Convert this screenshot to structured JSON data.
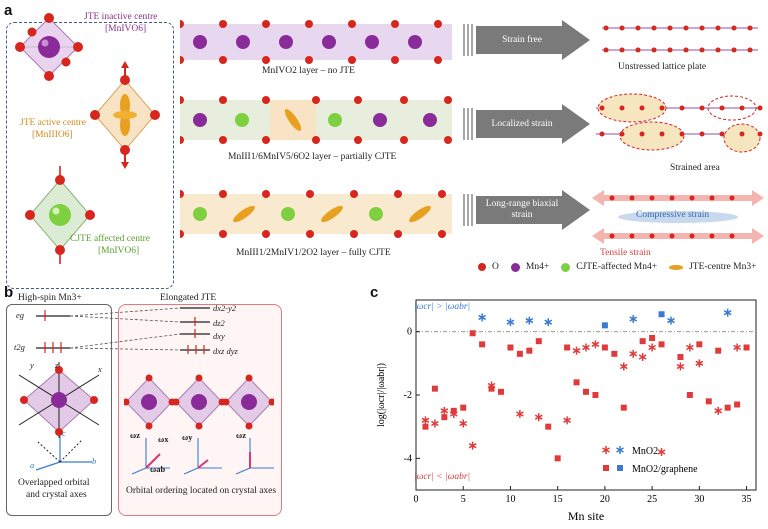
{
  "panel_a": {
    "letter": "a",
    "centre_inactive": {
      "line1": "JTE inactive centre",
      "line2": "[MnIVO6]"
    },
    "centre_active": {
      "line1": "JTE active centre",
      "line2": "[MnIIIO6]"
    },
    "centre_cjte": {
      "line1": "CJTE affected centre",
      "line2": "[MnIVO6]"
    },
    "layers": [
      {
        "label": "MnIVO2 layer – no JTE",
        "arrow": "Strain free",
        "result": "Unstressed lattice plate"
      },
      {
        "label": "MnIII1/6MnIV5/6O2 layer – partially CJTE",
        "arrow": "Localized strain",
        "result": "Strained area"
      },
      {
        "label": "MnIII1/2MnIV1/2O2 layer – fully CJTE",
        "arrow": "Long-range biaxial strain",
        "result_top": "Compressive strain",
        "result_bottom": "Tensile strain"
      }
    ],
    "legend": [
      {
        "symbol": "o-dot",
        "label": "O"
      },
      {
        "symbol": "mn4-dot",
        "label": "Mn4+"
      },
      {
        "symbol": "cjte-dot",
        "label": "CJTE-affected Mn4+"
      },
      {
        "symbol": "jte-orbital",
        "label": "JTE-centre Mn3+"
      }
    ]
  },
  "panel_b": {
    "letter": "b",
    "box1_title": "High-spin Mn3+",
    "levels": [
      "eg",
      "t2g"
    ],
    "orbitals": [
      "dx2-y2",
      "dz2",
      "dxy",
      "dxz dyz"
    ],
    "box1_caption_1": "Overlapped orbital",
    "box1_caption_2": "and crystal axes",
    "box2_title": "Elongated JTE",
    "box2_caption": "Orbital ordering located on crystal axes",
    "axes": {
      "a": "a",
      "b": "b",
      "c": "c",
      "x": "x",
      "y": "y",
      "z": "z"
    },
    "omega_labels": [
      "ωz",
      "ωx",
      "ωab",
      "ωy",
      "ωz"
    ]
  },
  "panel_c": {
    "letter": "c",
    "note_top": "|ωcr| > |ωabr|",
    "note_bottom": "|ωcr| < |ωabr|",
    "colors": {
      "red": "#e03a3a",
      "blue": "#3a7ad0"
    }
  },
  "chart_data": {
    "type": "scatter",
    "title": "",
    "xlabel": "Mn site",
    "ylabel": "log(|ωcr|/|ωabr|)",
    "xlim": [
      0,
      36
    ],
    "ylim": [
      -5,
      1
    ],
    "xticks": [
      0,
      5,
      10,
      15,
      20,
      25,
      30,
      35
    ],
    "yticks": [
      -4,
      -2,
      0
    ],
    "reference_line": 0,
    "series": [
      {
        "name": "MnO2",
        "marker": "star",
        "color": "#e03a3a",
        "points": [
          [
            1,
            -2.8
          ],
          [
            2,
            -2.9
          ],
          [
            3,
            -2.5
          ],
          [
            4,
            -2.6
          ],
          [
            5,
            -2.9
          ],
          [
            6,
            -3.6
          ],
          [
            8,
            -1.7
          ],
          [
            11,
            -2.6
          ],
          [
            13,
            -2.7
          ],
          [
            16,
            -2.8
          ],
          [
            17,
            -0.6
          ],
          [
            18,
            -0.5
          ],
          [
            19,
            -0.4
          ],
          [
            22,
            -1.1
          ],
          [
            23,
            -0.7
          ],
          [
            24,
            -0.8
          ],
          [
            25,
            -0.5
          ],
          [
            26,
            -3.8
          ],
          [
            28,
            -1.1
          ],
          [
            29,
            -0.5
          ],
          [
            30,
            -1.0
          ],
          [
            32,
            -2.5
          ],
          [
            34,
            -0.5
          ]
        ]
      },
      {
        "name": "MnO2",
        "marker": "star",
        "color": "#3a7ad0",
        "points": [
          [
            7,
            0.45
          ],
          [
            10,
            0.3
          ],
          [
            12,
            0.35
          ],
          [
            14,
            0.3
          ],
          [
            23,
            0.4
          ],
          [
            27,
            0.35
          ],
          [
            33,
            0.6
          ]
        ]
      },
      {
        "name": "MnO2/graphene",
        "marker": "square",
        "color": "#e03a3a",
        "points": [
          [
            1,
            -3.0
          ],
          [
            2,
            -1.8
          ],
          [
            3,
            -2.7
          ],
          [
            4,
            -2.5
          ],
          [
            5,
            -2.4
          ],
          [
            6,
            -0.05
          ],
          [
            7,
            -0.4
          ],
          [
            8,
            -1.8
          ],
          [
            9,
            -1.9
          ],
          [
            10,
            -0.5
          ],
          [
            11,
            -0.7
          ],
          [
            12,
            -0.6
          ],
          [
            13,
            -0.3
          ],
          [
            14,
            -3.0
          ],
          [
            15,
            -4.0
          ],
          [
            16,
            -0.5
          ],
          [
            17,
            -1.6
          ],
          [
            18,
            -1.9
          ],
          [
            19,
            -2.0
          ],
          [
            20,
            -0.5
          ],
          [
            21,
            -0.7
          ],
          [
            22,
            -2.4
          ],
          [
            24,
            -0.3
          ],
          [
            25,
            -0.2
          ],
          [
            26,
            -0.4
          ],
          [
            28,
            -0.8
          ],
          [
            29,
            -2.0
          ],
          [
            30,
            -0.4
          ],
          [
            31,
            -2.2
          ],
          [
            32,
            -0.6
          ],
          [
            33,
            -2.4
          ],
          [
            34,
            -2.3
          ],
          [
            35,
            -0.5
          ]
        ]
      },
      {
        "name": "MnO2/graphene",
        "marker": "square",
        "color": "#3a7ad0",
        "points": [
          [
            20,
            0.2
          ],
          [
            26,
            0.55
          ]
        ]
      }
    ],
    "legend": [
      {
        "label": "MnO2",
        "symbols": [
          "red-star",
          "blue-star"
        ]
      },
      {
        "label": "MnO2/graphene",
        "symbols": [
          "red-square",
          "blue-square"
        ]
      }
    ],
    "legend_position": "bottom-right"
  }
}
